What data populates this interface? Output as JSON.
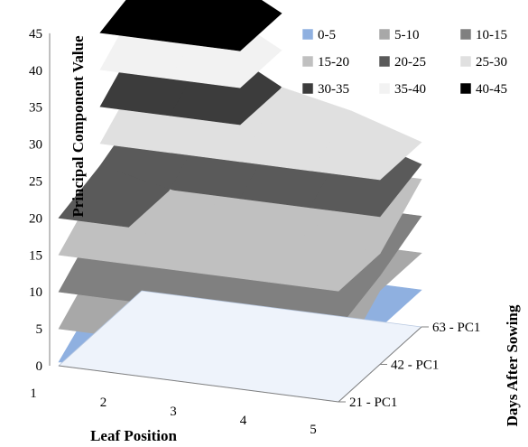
{
  "chart_data": {
    "type": "surface",
    "title": "",
    "zlabel": "Principal Component Value",
    "xlabel": "Leaf Position",
    "ylabel": "Days After Sowing",
    "zlim": [
      0,
      45
    ],
    "z_ticks": [
      "0",
      "5",
      "10",
      "15",
      "20",
      "25",
      "30",
      "35",
      "40",
      "45"
    ],
    "x": [
      "1",
      "2",
      "3",
      "4",
      "5"
    ],
    "y": [
      "21 - PC1",
      "42 - PC1",
      "63 - PC1"
    ],
    "series": [
      {
        "name": "21 - PC1",
        "values": [
          0.5,
          1.5,
          1.0,
          2.0,
          0.5
        ]
      },
      {
        "name": "42 - PC1",
        "values": [
          22,
          20,
          18,
          16,
          12
        ]
      },
      {
        "name": "63 - PC1",
        "values": [
          42,
          45,
          30,
          28,
          22
        ]
      }
    ],
    "legend": {
      "position": "top-right",
      "entries": [
        {
          "label": "0-5",
          "color": "#8fb0e0"
        },
        {
          "label": "5-10",
          "color": "#a8a8a8"
        },
        {
          "label": "10-15",
          "color": "#808080"
        },
        {
          "label": "15-20",
          "color": "#c0c0c0"
        },
        {
          "label": "20-25",
          "color": "#5a5a5a"
        },
        {
          "label": "25-30",
          "color": "#e0e0e0"
        },
        {
          "label": "30-35",
          "color": "#3c3c3c"
        },
        {
          "label": "35-40",
          "color": "#f2f2f2"
        },
        {
          "label": "40-45",
          "color": "#000000"
        }
      ]
    }
  }
}
